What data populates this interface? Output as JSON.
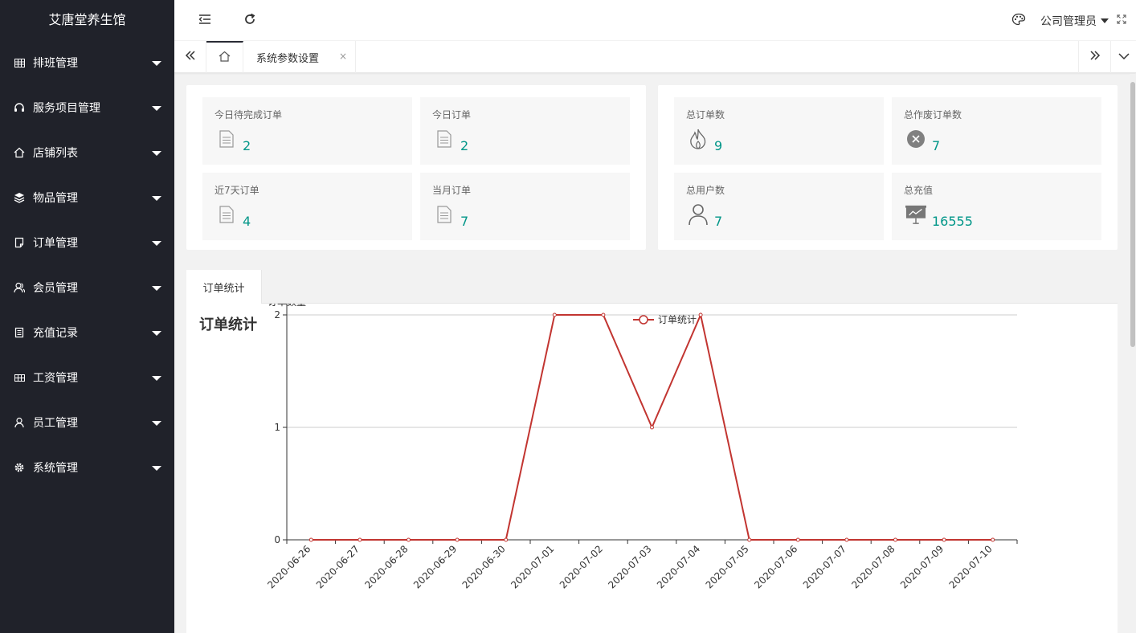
{
  "app": {
    "title": "艾唐堂养生馆"
  },
  "sidebar": {
    "items": [
      {
        "label": "排班管理",
        "icon": "grid-icon"
      },
      {
        "label": "服务项目管理",
        "icon": "headset-icon"
      },
      {
        "label": "店铺列表",
        "icon": "home-icon"
      },
      {
        "label": "物品管理",
        "icon": "layers-icon"
      },
      {
        "label": "订单管理",
        "icon": "note-icon"
      },
      {
        "label": "会员管理",
        "icon": "users-icon"
      },
      {
        "label": "充值记录",
        "icon": "list-icon"
      },
      {
        "label": "工资管理",
        "icon": "table-icon"
      },
      {
        "label": "员工管理",
        "icon": "user-icon"
      },
      {
        "label": "系统管理",
        "icon": "gear-icon"
      }
    ]
  },
  "header": {
    "admin_label": "公司管理员"
  },
  "tabs": {
    "active_tab": "系统参数设置",
    "close_glyph": "×"
  },
  "stats_left": [
    {
      "title": "今日待完成订单",
      "value": "2",
      "icon": "document-icon"
    },
    {
      "title": "今日订单",
      "value": "2",
      "icon": "document-icon"
    },
    {
      "title": "近7天订单",
      "value": "4",
      "icon": "document-icon"
    },
    {
      "title": "当月订单",
      "value": "7",
      "icon": "document-icon"
    }
  ],
  "stats_right": [
    {
      "title": "总订单数",
      "value": "9",
      "icon": "fire-icon"
    },
    {
      "title": "总作废订单数",
      "value": "7",
      "icon": "cancel-circle-icon"
    },
    {
      "title": "总用户数",
      "value": "7",
      "icon": "user-icon"
    },
    {
      "title": "总充值",
      "value": "16555",
      "icon": "presentation-icon"
    }
  ],
  "chart_panel": {
    "tab_label": "订单统计",
    "title": "订单统计"
  },
  "chart_data": {
    "type": "line",
    "title": "订单统计",
    "ylabel": "订单数量",
    "xlabel": "",
    "legend": "top-center",
    "color": "#c23531",
    "ylim": [
      0,
      2
    ],
    "yticks": [
      0,
      1,
      2
    ],
    "series": [
      {
        "name": "订单统计",
        "x": [
          "2020-06-26",
          "2020-06-27",
          "2020-06-28",
          "2020-06-29",
          "2020-06-30",
          "2020-07-01",
          "2020-07-02",
          "2020-07-03",
          "2020-07-04",
          "2020-07-05",
          "2020-07-06",
          "2020-07-07",
          "2020-07-08",
          "2020-07-09",
          "2020-07-10"
        ],
        "values": [
          0,
          0,
          0,
          0,
          0,
          2,
          2,
          1,
          2,
          0,
          0,
          0,
          0,
          0,
          0
        ]
      }
    ]
  }
}
